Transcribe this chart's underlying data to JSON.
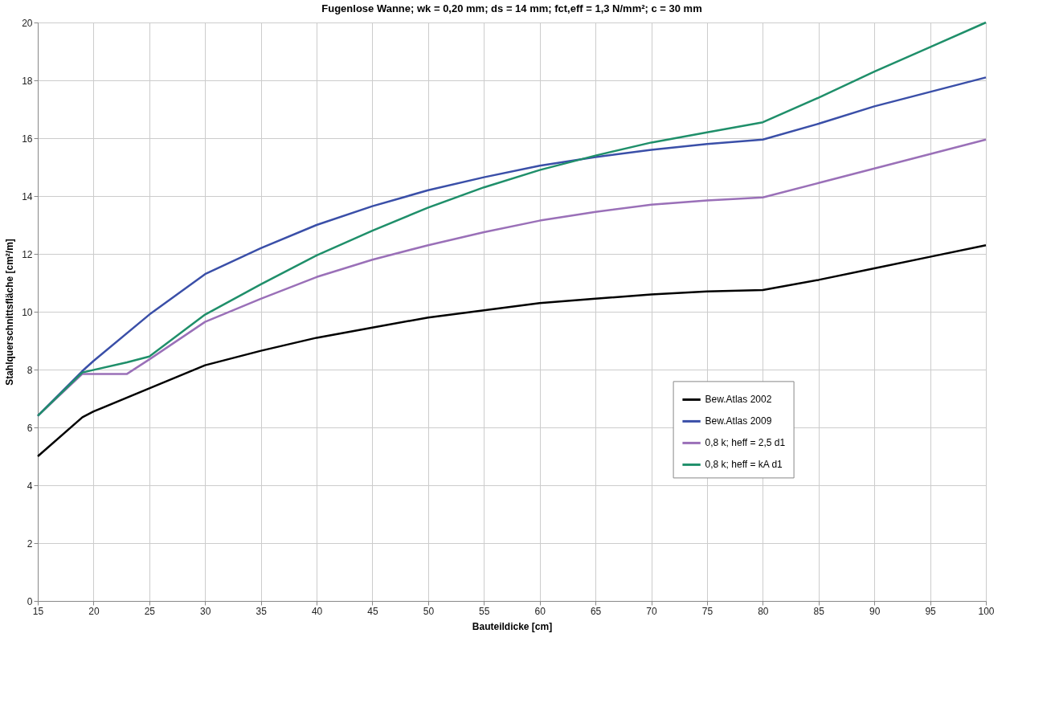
{
  "chart_data": {
    "type": "line",
    "title": "Fugenlose Wanne; wk = 0,20 mm; ds = 14 mm; fct,eff = 1,3 N/mm²; c = 30 mm",
    "xlabel": "Bauteildicke [cm]",
    "ylabel": "Stahlquerschnittsfläche [cm²/m]",
    "xlim": [
      15,
      100
    ],
    "xticks": [
      15,
      20,
      25,
      30,
      35,
      40,
      45,
      50,
      55,
      60,
      65,
      70,
      75,
      80,
      85,
      90,
      95,
      100
    ],
    "ylim": [
      0,
      20
    ],
    "yticks": [
      0,
      2,
      4,
      6,
      8,
      10,
      12,
      14,
      16,
      18,
      20
    ],
    "grid": true,
    "legend": "right",
    "marker": "none",
    "line_style": "solid",
    "series": [
      {
        "name": "Bew.Atlas 2002",
        "color": "#000000",
        "x": [
          15,
          19,
          20,
          25,
          30,
          35,
          40,
          45,
          50,
          55,
          60,
          65,
          70,
          75,
          80,
          85,
          90,
          95,
          100
        ],
        "values": [
          5.0,
          6.35,
          6.55,
          7.35,
          8.15,
          8.65,
          9.1,
          9.45,
          9.8,
          10.05,
          10.3,
          10.45,
          10.6,
          10.7,
          10.75,
          11.1,
          11.5,
          11.9,
          12.3
        ]
      },
      {
        "name": "Bew.Atlas 2009",
        "color": "#3a4fa8",
        "x": [
          15,
          19,
          20,
          25,
          30,
          35,
          40,
          45,
          50,
          55,
          60,
          65,
          70,
          75,
          80,
          85,
          90,
          95,
          100
        ],
        "values": [
          6.4,
          7.95,
          8.3,
          9.9,
          11.3,
          12.2,
          13.0,
          13.65,
          14.2,
          14.65,
          15.05,
          15.35,
          15.6,
          15.8,
          15.95,
          16.5,
          17.1,
          17.6,
          18.1
        ]
      },
      {
        "name": "0,8 k; heff = 2,5 d1",
        "color": "#9a70b8",
        "x": [
          15,
          19,
          23,
          25,
          30,
          35,
          40,
          45,
          50,
          55,
          60,
          65,
          70,
          75,
          80,
          85,
          90,
          95,
          100
        ],
        "values": [
          6.4,
          7.85,
          7.85,
          8.35,
          9.65,
          10.45,
          11.2,
          11.8,
          12.3,
          12.75,
          13.15,
          13.45,
          13.7,
          13.85,
          13.95,
          14.45,
          14.95,
          15.45,
          15.95
        ]
      },
      {
        "name": "0,8 k; heff = kA d1",
        "color": "#1f8f6a",
        "x": [
          15,
          19,
          23,
          25,
          30,
          35,
          40,
          45,
          50,
          55,
          60,
          65,
          70,
          75,
          80,
          85,
          90,
          95,
          100
        ],
        "values": [
          6.4,
          7.9,
          8.25,
          8.45,
          9.9,
          10.95,
          11.95,
          12.8,
          13.6,
          14.3,
          14.9,
          15.4,
          15.85,
          16.2,
          16.55,
          17.4,
          18.3,
          19.15,
          20.0
        ]
      }
    ]
  }
}
